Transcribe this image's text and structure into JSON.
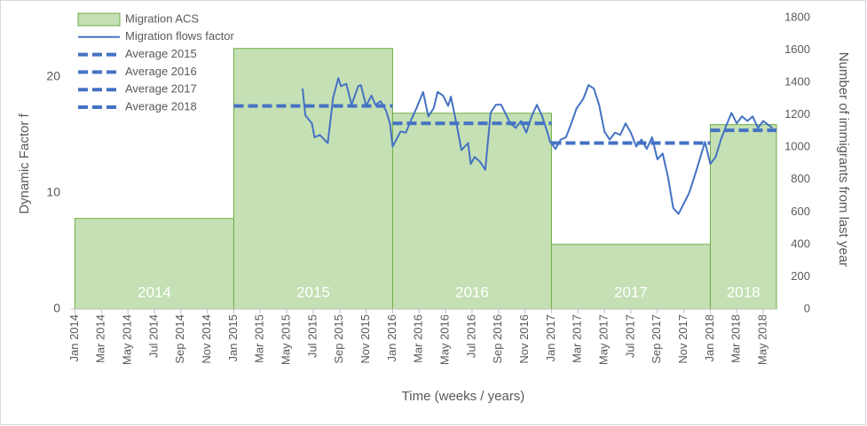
{
  "chart_data": {
    "type": "combo",
    "x_label": "Time (weeks / years)",
    "y_label": "Dynamic Factor f",
    "y2_label": "Number of immigrants from last year",
    "xlim": [
      -0.3,
      53
    ],
    "xticks": [
      {
        "value": 0,
        "label": "Jan 2014"
      },
      {
        "value": 2,
        "label": "Mar 2014"
      },
      {
        "value": 4,
        "label": "May 2014"
      },
      {
        "value": 6,
        "label": "Jul 2014"
      },
      {
        "value": 8,
        "label": "Sep 2014"
      },
      {
        "value": 10,
        "label": "Nov 2014"
      },
      {
        "value": 12,
        "label": "Jan 2015"
      },
      {
        "value": 14,
        "label": "Mar 2015"
      },
      {
        "value": 16,
        "label": "May 2015"
      },
      {
        "value": 18,
        "label": "Jul 2015"
      },
      {
        "value": 20,
        "label": "Sep 2015"
      },
      {
        "value": 22,
        "label": "Nov 2015"
      },
      {
        "value": 24,
        "label": "Jan 2016"
      },
      {
        "value": 26,
        "label": "Mar 2016"
      },
      {
        "value": 28,
        "label": "May 2016"
      },
      {
        "value": 30,
        "label": "Jul 2016"
      },
      {
        "value": 32,
        "label": "Sep 2016"
      },
      {
        "value": 34,
        "label": "Nov 2016"
      },
      {
        "value": 36,
        "label": "Jan 2017"
      },
      {
        "value": 38,
        "label": "Mar 2017"
      },
      {
        "value": 40,
        "label": "May 2017"
      },
      {
        "value": 42,
        "label": "Jul 2017"
      },
      {
        "value": 44,
        "label": "Sep 2017"
      },
      {
        "value": 46,
        "label": "Nov 2017"
      },
      {
        "value": 48,
        "label": "Jan 2018"
      },
      {
        "value": 50,
        "label": "Mar 2018"
      },
      {
        "value": 52,
        "label": "May 2018"
      }
    ],
    "ylim": [
      0,
      25.1
    ],
    "yticks": [
      0,
      10,
      20
    ],
    "y2lim": [
      0,
      1800
    ],
    "y2ticks": [
      0,
      200,
      400,
      600,
      800,
      1000,
      1200,
      1400,
      1600,
      1800
    ],
    "grid": false,
    "legend": "top-left",
    "series": [
      {
        "name": "Migration ACS",
        "type": "bar",
        "axis": "y2",
        "color": "#c5e0b4",
        "categories": [
          "2014",
          "2015",
          "2016",
          "2017",
          "2018"
        ],
        "bins": [
          0,
          12,
          24,
          36,
          48,
          53
        ],
        "values": [
          560,
          1610,
          1210,
          400,
          1140
        ]
      },
      {
        "name": "Migration flows factor",
        "type": "line",
        "color": "#4472c4",
        "x": [
          17.2,
          17.4,
          17.9,
          18.1,
          18.5,
          19.1,
          19.5,
          19.9,
          20.1,
          20.5,
          20.9,
          21.4,
          21.6,
          22.0,
          22.4,
          22.7,
          23.1,
          23.5,
          23.8,
          24.0,
          24.6,
          25.0,
          25.4,
          25.8,
          26.3,
          26.7,
          27.1,
          27.4,
          27.8,
          28.2,
          28.4,
          28.8,
          29.2,
          29.7,
          29.9,
          30.2,
          30.6,
          31.0,
          31.4,
          31.8,
          32.2,
          32.5,
          32.9,
          33.3,
          33.7,
          34.1,
          34.5,
          34.9,
          35.3,
          35.7,
          35.9,
          36.3,
          36.7,
          37.1,
          37.5,
          37.9,
          38.4,
          38.8,
          39.2,
          39.6,
          40.0,
          40.4,
          40.8,
          41.2,
          41.6,
          42.0,
          42.4,
          42.8,
          43.2,
          43.6,
          44.0,
          44.4,
          44.8,
          45.2,
          45.6,
          46.0,
          46.4,
          46.8,
          47.2,
          47.6,
          48.0,
          48.4,
          48.8,
          49.2,
          49.6,
          50.0,
          50.4,
          50.8,
          51.2,
          51.6,
          52.0,
          52.7
        ],
        "values": [
          19.0,
          16.7,
          16.0,
          14.8,
          15.0,
          14.3,
          18.2,
          19.9,
          19.2,
          19.4,
          17.6,
          19.2,
          19.3,
          17.5,
          18.4,
          17.6,
          17.9,
          17.1,
          16.0,
          14.0,
          15.3,
          15.2,
          16.3,
          17.3,
          18.7,
          16.6,
          17.3,
          18.7,
          18.4,
          17.5,
          18.3,
          16.1,
          13.7,
          14.3,
          12.5,
          13.1,
          12.7,
          12.0,
          16.9,
          17.6,
          17.6,
          16.9,
          16.0,
          15.6,
          16.2,
          15.2,
          16.6,
          17.6,
          16.6,
          15.2,
          14.4,
          13.8,
          14.6,
          14.8,
          16.0,
          17.3,
          18.1,
          19.3,
          19.0,
          17.6,
          15.3,
          14.6,
          15.2,
          15.0,
          16.0,
          15.2,
          14.0,
          14.6,
          13.8,
          14.8,
          12.9,
          13.4,
          11.4,
          8.7,
          8.2,
          9.1,
          10.0,
          11.4,
          12.9,
          14.4,
          12.5,
          13.1,
          14.6,
          15.8,
          16.9,
          16.0,
          16.6,
          16.2,
          16.6,
          15.6,
          16.2,
          15.6
        ]
      },
      {
        "name": "Average 2015",
        "type": "line",
        "dashed": true,
        "color": "#4472c4",
        "x": [
          12,
          24
        ],
        "values": [
          17.5,
          17.5
        ]
      },
      {
        "name": "Average 2016",
        "type": "line",
        "dashed": true,
        "color": "#4472c4",
        "x": [
          24,
          36
        ],
        "values": [
          16.0,
          16.0
        ]
      },
      {
        "name": "Average 2017",
        "type": "line",
        "dashed": true,
        "color": "#4472c4",
        "x": [
          36,
          48
        ],
        "values": [
          14.3,
          14.3
        ]
      },
      {
        "name": "Average 2018",
        "type": "line",
        "dashed": true,
        "color": "#4472c4",
        "x": [
          48,
          53
        ],
        "values": [
          15.4,
          15.4
        ]
      }
    ]
  }
}
